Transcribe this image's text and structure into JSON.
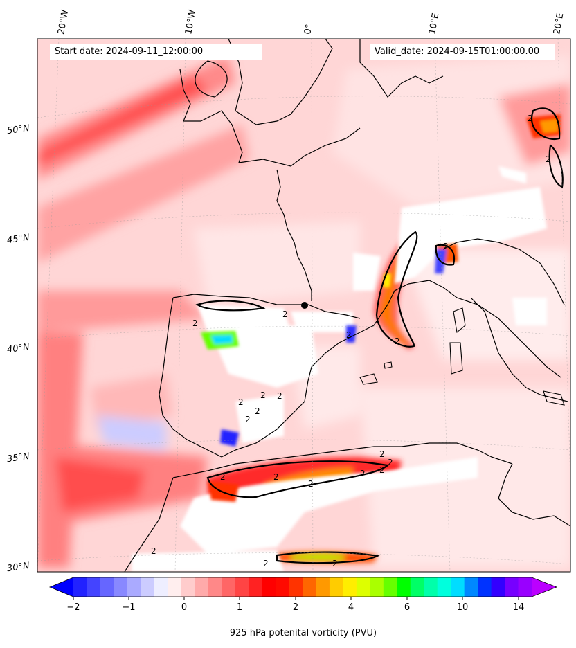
{
  "header": {
    "start_label": "Start date: 2024-09-11_12:00:00",
    "valid_label": "Valid_date: 2024-09-15T01:00:00.00"
  },
  "graticule": {
    "longitudes": [
      "20°W",
      "10°W",
      "0°",
      "10°E",
      "20°E"
    ],
    "latitudes": [
      "50°N",
      "45°N",
      "40°N",
      "35°N",
      "30°N"
    ]
  },
  "contour_label": "2",
  "colorbar": {
    "title": "925 hPa potenital vorticity (PVU)",
    "tick_labels": [
      "−2",
      "−1",
      "0",
      "1",
      "2",
      "4",
      "6",
      "10",
      "14"
    ],
    "colors": [
      "#0000ff",
      "#2222ff",
      "#4444ff",
      "#6666ff",
      "#8888ff",
      "#aaaaff",
      "#ccccff",
      "#eeeeff",
      "#ffeeee",
      "#ffcccc",
      "#ffaaaa",
      "#ff8888",
      "#ff6666",
      "#ff4444",
      "#ff2222",
      "#ff0000",
      "#ff0a00",
      "#ff3300",
      "#ff6600",
      "#ff9900",
      "#ffcc00",
      "#ffee00",
      "#ddff00",
      "#aaff00",
      "#66ff00",
      "#00ff00",
      "#00ff66",
      "#00ffaa",
      "#00ffdd",
      "#00ddff",
      "#0088ff",
      "#0033ff",
      "#3300ff",
      "#7700ff",
      "#9900ff",
      "#bb00ff"
    ]
  }
}
